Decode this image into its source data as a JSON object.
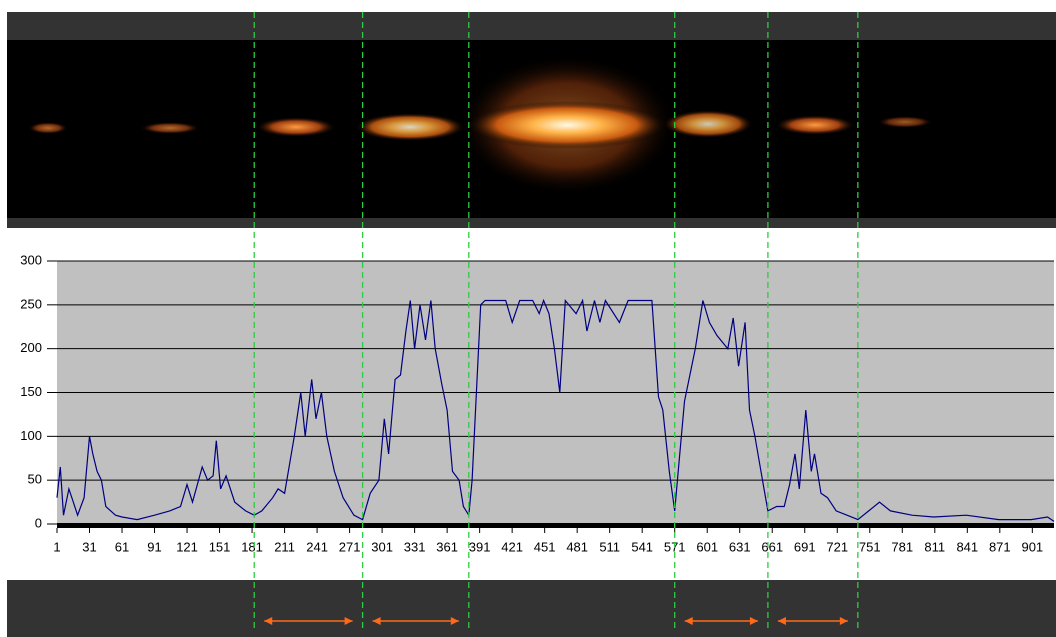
{
  "chart_data": {
    "type": "line",
    "x": [
      1,
      4,
      7,
      12,
      16,
      20,
      26,
      31,
      34,
      38,
      42,
      46,
      55,
      61,
      75,
      91,
      105,
      115,
      121,
      126,
      135,
      140,
      145,
      148,
      152,
      157,
      165,
      175,
      183,
      190,
      200,
      205,
      211,
      220,
      226,
      230,
      236,
      240,
      245,
      250,
      257,
      265,
      275,
      283,
      290,
      298,
      303,
      307,
      313,
      318,
      323,
      327,
      331,
      336,
      341,
      346,
      350,
      356,
      361,
      366,
      372,
      376,
      381,
      384,
      388,
      392,
      396,
      415,
      421,
      428,
      440,
      446,
      450,
      455,
      460,
      465,
      470,
      480,
      486,
      490,
      497,
      502,
      507,
      520,
      528,
      545,
      550,
      556,
      560,
      566,
      571,
      575,
      580,
      590,
      597,
      603,
      610,
      620,
      625,
      630,
      636,
      640,
      645,
      652,
      657,
      665,
      672,
      677,
      682,
      686,
      692,
      697,
      700,
      706,
      712,
      720,
      730,
      740,
      750,
      760,
      770,
      790,
      810,
      840,
      870,
      900,
      915,
      921
    ],
    "values": [
      30,
      65,
      10,
      40,
      25,
      10,
      30,
      100,
      80,
      60,
      50,
      20,
      10,
      8,
      5,
      10,
      15,
      20,
      45,
      25,
      65,
      50,
      55,
      95,
      40,
      55,
      25,
      15,
      10,
      15,
      30,
      40,
      35,
      100,
      150,
      100,
      165,
      120,
      150,
      100,
      60,
      30,
      10,
      5,
      35,
      50,
      120,
      80,
      165,
      170,
      220,
      255,
      200,
      250,
      210,
      255,
      200,
      160,
      130,
      60,
      50,
      20,
      10,
      50,
      150,
      250,
      255,
      255,
      230,
      255,
      255,
      240,
      255,
      240,
      200,
      150,
      255,
      240,
      255,
      220,
      255,
      230,
      255,
      230,
      255,
      255,
      255,
      145,
      130,
      60,
      15,
      70,
      140,
      200,
      255,
      230,
      215,
      200,
      235,
      180,
      230,
      130,
      100,
      50,
      15,
      20,
      20,
      45,
      80,
      40,
      130,
      60,
      80,
      35,
      30,
      15,
      10,
      5,
      15,
      25,
      15,
      10,
      8,
      10,
      5,
      5,
      8,
      3
    ],
    "color": "#000080",
    "xlim": [
      1,
      921
    ],
    "xticks": [
      1,
      31,
      61,
      91,
      121,
      151,
      181,
      211,
      241,
      271,
      301,
      331,
      361,
      391,
      421,
      451,
      481,
      511,
      541,
      571,
      601,
      631,
      661,
      691,
      721,
      751,
      781,
      811,
      841,
      871,
      901
    ],
    "ylim": [
      0,
      300
    ],
    "yticks": [
      0,
      50,
      100,
      150,
      200,
      250,
      300
    ],
    "grid": true,
    "vlines": [
      183,
      283,
      381,
      571,
      657,
      740
    ]
  }
}
